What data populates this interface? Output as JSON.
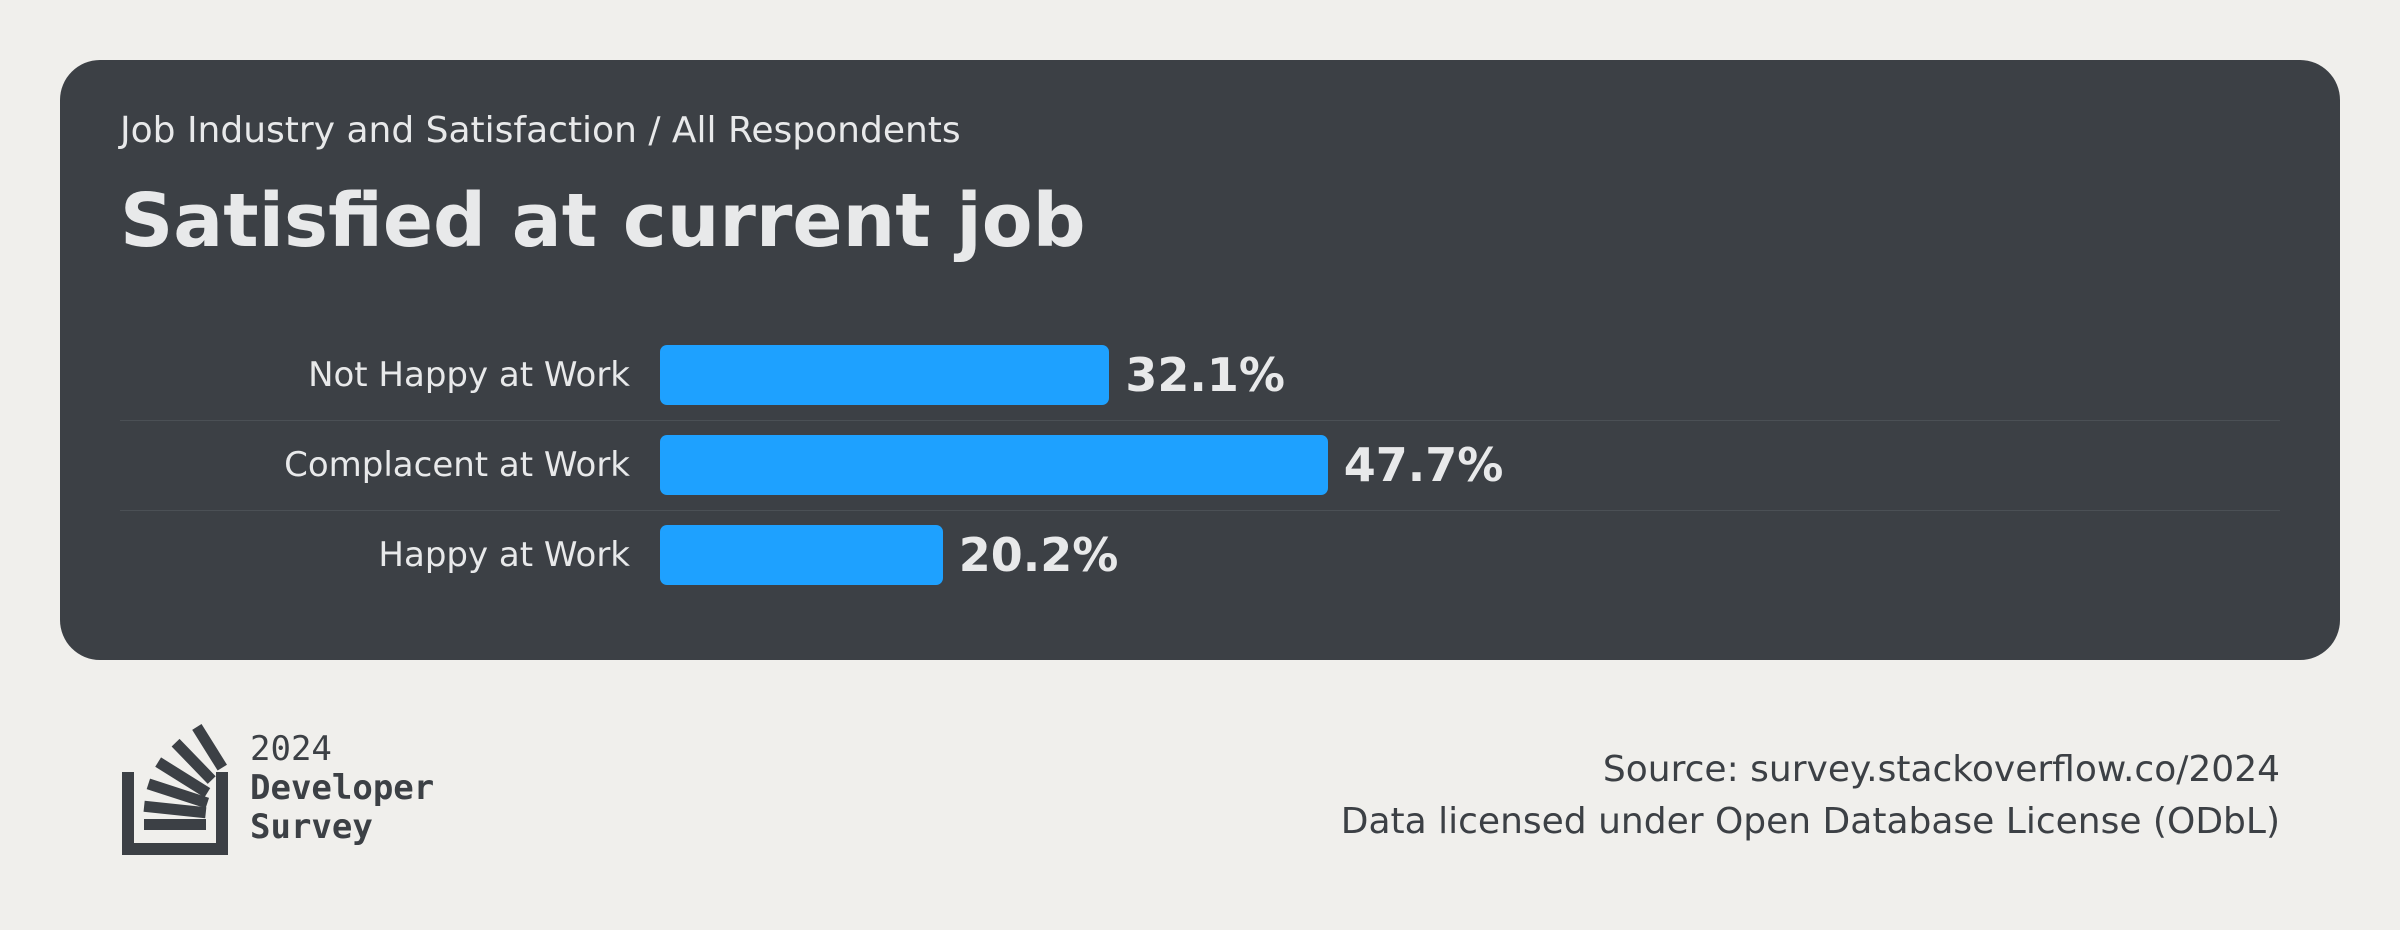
{
  "header": {
    "subtitle": "Job Industry and Satisfaction / All Respondents",
    "title": "Satisfied at current job"
  },
  "chart_data": {
    "type": "bar",
    "orientation": "horizontal",
    "title": "Satisfied at current job",
    "subtitle": "Job Industry and Satisfaction / All Respondents",
    "categories": [
      "Not Happy at Work",
      "Complacent at Work",
      "Happy at Work"
    ],
    "values": [
      32.1,
      47.7,
      20.2
    ],
    "value_labels": [
      "32.1%",
      "47.7%",
      "20.2%"
    ],
    "unit": "%",
    "xlim": [
      0,
      100
    ],
    "grid": false,
    "legend": "none",
    "bar_color": "#1ea1ff"
  },
  "footer": {
    "logo": {
      "icon": "stack-overflow-logo-icon",
      "year": "2024",
      "line1": "Developer",
      "line2": "Survey"
    },
    "source_line": "Source: survey.stackoverflow.co/2024",
    "license_line": "Data licensed under Open Database License (ODbL)"
  },
  "colors": {
    "background": "#f0efec",
    "card": "#3c4045",
    "text_light": "#e8e9ea",
    "text_dark": "#3c4045",
    "accent": "#1ea1ff"
  }
}
